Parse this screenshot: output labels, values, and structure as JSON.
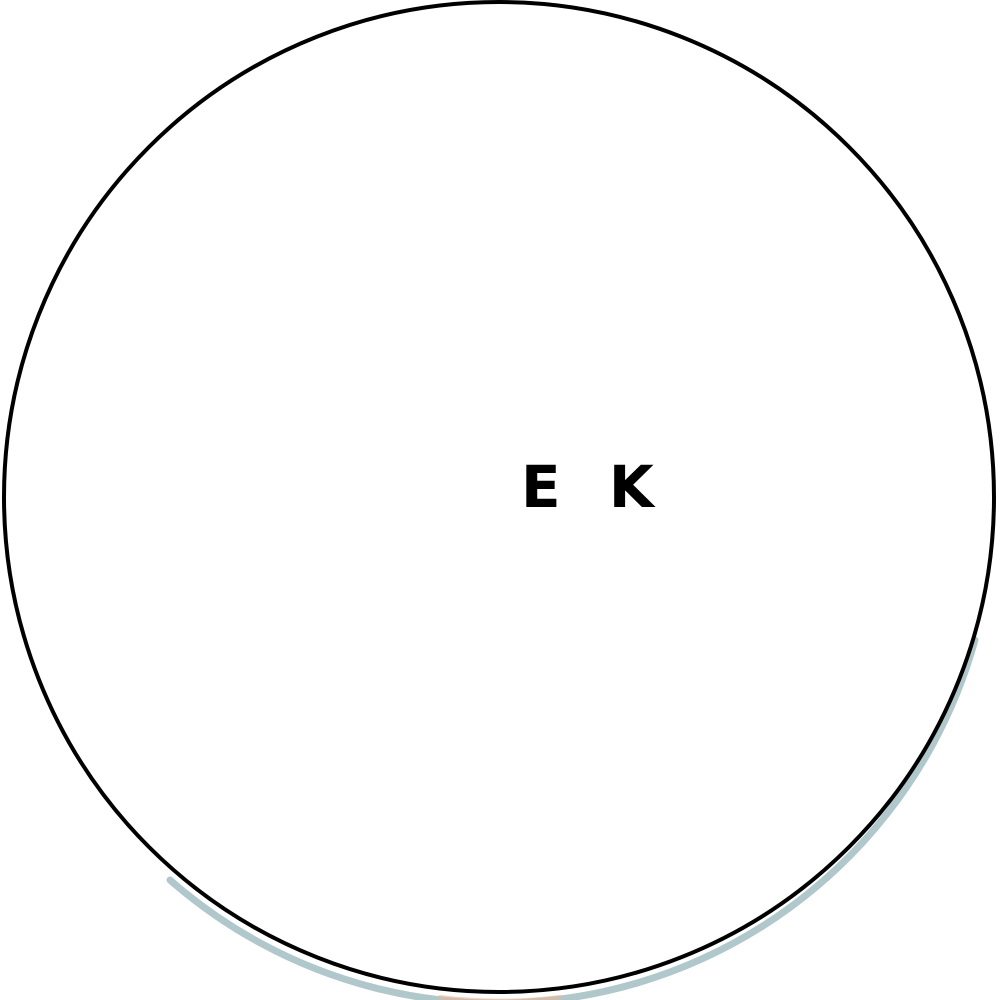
{
  "badge": {
    "monogram": "E K",
    "colors": {
      "fill": "#ffffff",
      "outline": "#000000",
      "text": "#000000",
      "edge_shadow": "#6f9aa0",
      "edge_accent": "#e7b89a"
    }
  }
}
